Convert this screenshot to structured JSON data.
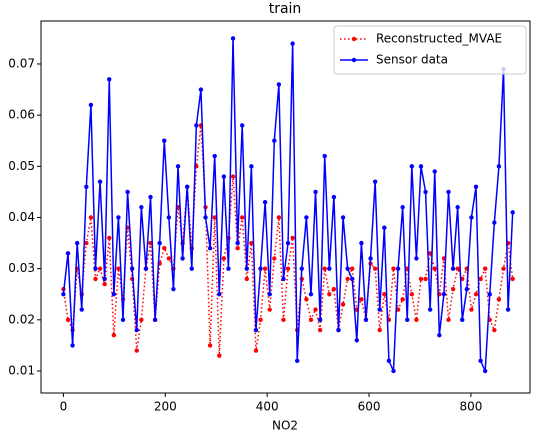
{
  "chart_data": {
    "type": "line",
    "title": "train",
    "x_label": "NO2",
    "x": [
      0,
      9,
      18,
      27,
      36,
      45,
      54,
      63,
      72,
      81,
      90,
      99,
      108,
      117,
      126,
      135,
      144,
      153,
      162,
      171,
      180,
      189,
      198,
      207,
      216,
      225,
      234,
      243,
      252,
      261,
      270,
      279,
      288,
      297,
      306,
      315,
      324,
      333,
      342,
      351,
      360,
      369,
      378,
      387,
      396,
      405,
      414,
      423,
      432,
      441,
      450,
      459,
      468,
      477,
      486,
      495,
      504,
      513,
      522,
      531,
      540,
      549,
      558,
      567,
      576,
      585,
      594,
      603,
      612,
      621,
      630,
      639,
      648,
      657,
      666,
      675,
      684,
      693,
      702,
      711,
      720,
      729,
      738,
      747,
      756,
      765,
      774,
      783,
      792,
      801,
      810,
      819,
      828,
      837,
      846,
      855,
      864,
      873,
      882
    ],
    "series": [
      {
        "name": "Reconstructed_MVAE",
        "color": "#ff0000",
        "dash": "dotted",
        "values": [
          0.026,
          0.02,
          0.018,
          0.03,
          0.025,
          0.035,
          0.04,
          0.028,
          0.03,
          0.027,
          0.036,
          0.017,
          0.03,
          0.024,
          0.038,
          0.028,
          0.014,
          0.02,
          0.03,
          0.035,
          0.02,
          0.031,
          0.034,
          0.032,
          0.03,
          0.042,
          0.035,
          0.046,
          0.034,
          0.05,
          0.058,
          0.042,
          0.015,
          0.04,
          0.013,
          0.032,
          0.036,
          0.048,
          0.034,
          0.04,
          0.028,
          0.035,
          0.014,
          0.02,
          0.03,
          0.022,
          0.032,
          0.04,
          0.02,
          0.03,
          0.036,
          0.018,
          0.028,
          0.024,
          0.02,
          0.022,
          0.018,
          0.03,
          0.025,
          0.026,
          0.018,
          0.023,
          0.028,
          0.03,
          0.022,
          0.024,
          0.02,
          0.031,
          0.03,
          0.018,
          0.025,
          0.02,
          0.03,
          0.022,
          0.024,
          0.03,
          0.025,
          0.02,
          0.028,
          0.028,
          0.033,
          0.03,
          0.025,
          0.032,
          0.02,
          0.026,
          0.03,
          0.028,
          0.03,
          0.022,
          0.025,
          0.028,
          0.03,
          0.02,
          0.018,
          0.024,
          0.03,
          0.035,
          0.028
        ]
      },
      {
        "name": "Sensor data",
        "color": "#0000ff",
        "dash": "solid",
        "values": [
          0.025,
          0.033,
          0.015,
          0.035,
          0.022,
          0.046,
          0.062,
          0.03,
          0.047,
          0.028,
          0.067,
          0.025,
          0.04,
          0.02,
          0.045,
          0.03,
          0.018,
          0.042,
          0.03,
          0.044,
          0.02,
          0.035,
          0.055,
          0.04,
          0.026,
          0.05,
          0.032,
          0.046,
          0.03,
          0.058,
          0.065,
          0.04,
          0.034,
          0.052,
          0.025,
          0.048,
          0.03,
          0.075,
          0.035,
          0.058,
          0.03,
          0.05,
          0.018,
          0.03,
          0.043,
          0.025,
          0.055,
          0.066,
          0.028,
          0.035,
          0.074,
          0.012,
          0.03,
          0.04,
          0.025,
          0.045,
          0.02,
          0.052,
          0.03,
          0.044,
          0.018,
          0.04,
          0.03,
          0.028,
          0.016,
          0.035,
          0.02,
          0.032,
          0.047,
          0.022,
          0.038,
          0.012,
          0.01,
          0.03,
          0.042,
          0.02,
          0.05,
          0.032,
          0.05,
          0.045,
          0.022,
          0.049,
          0.017,
          0.025,
          0.045,
          0.03,
          0.042,
          0.02,
          0.026,
          0.04,
          0.046,
          0.012,
          0.01,
          0.025,
          0.039,
          0.05,
          0.069,
          0.022,
          0.041
        ]
      }
    ],
    "xlim": [
      -44,
      916
    ],
    "xticks": [
      0,
      200,
      400,
      600,
      800
    ],
    "ylim": [
      0.0057,
      0.0784
    ],
    "yticks": [
      0.01,
      0.02,
      0.03,
      0.04,
      0.05,
      0.06,
      0.07
    ],
    "legend": "upper right",
    "grid": false
  }
}
